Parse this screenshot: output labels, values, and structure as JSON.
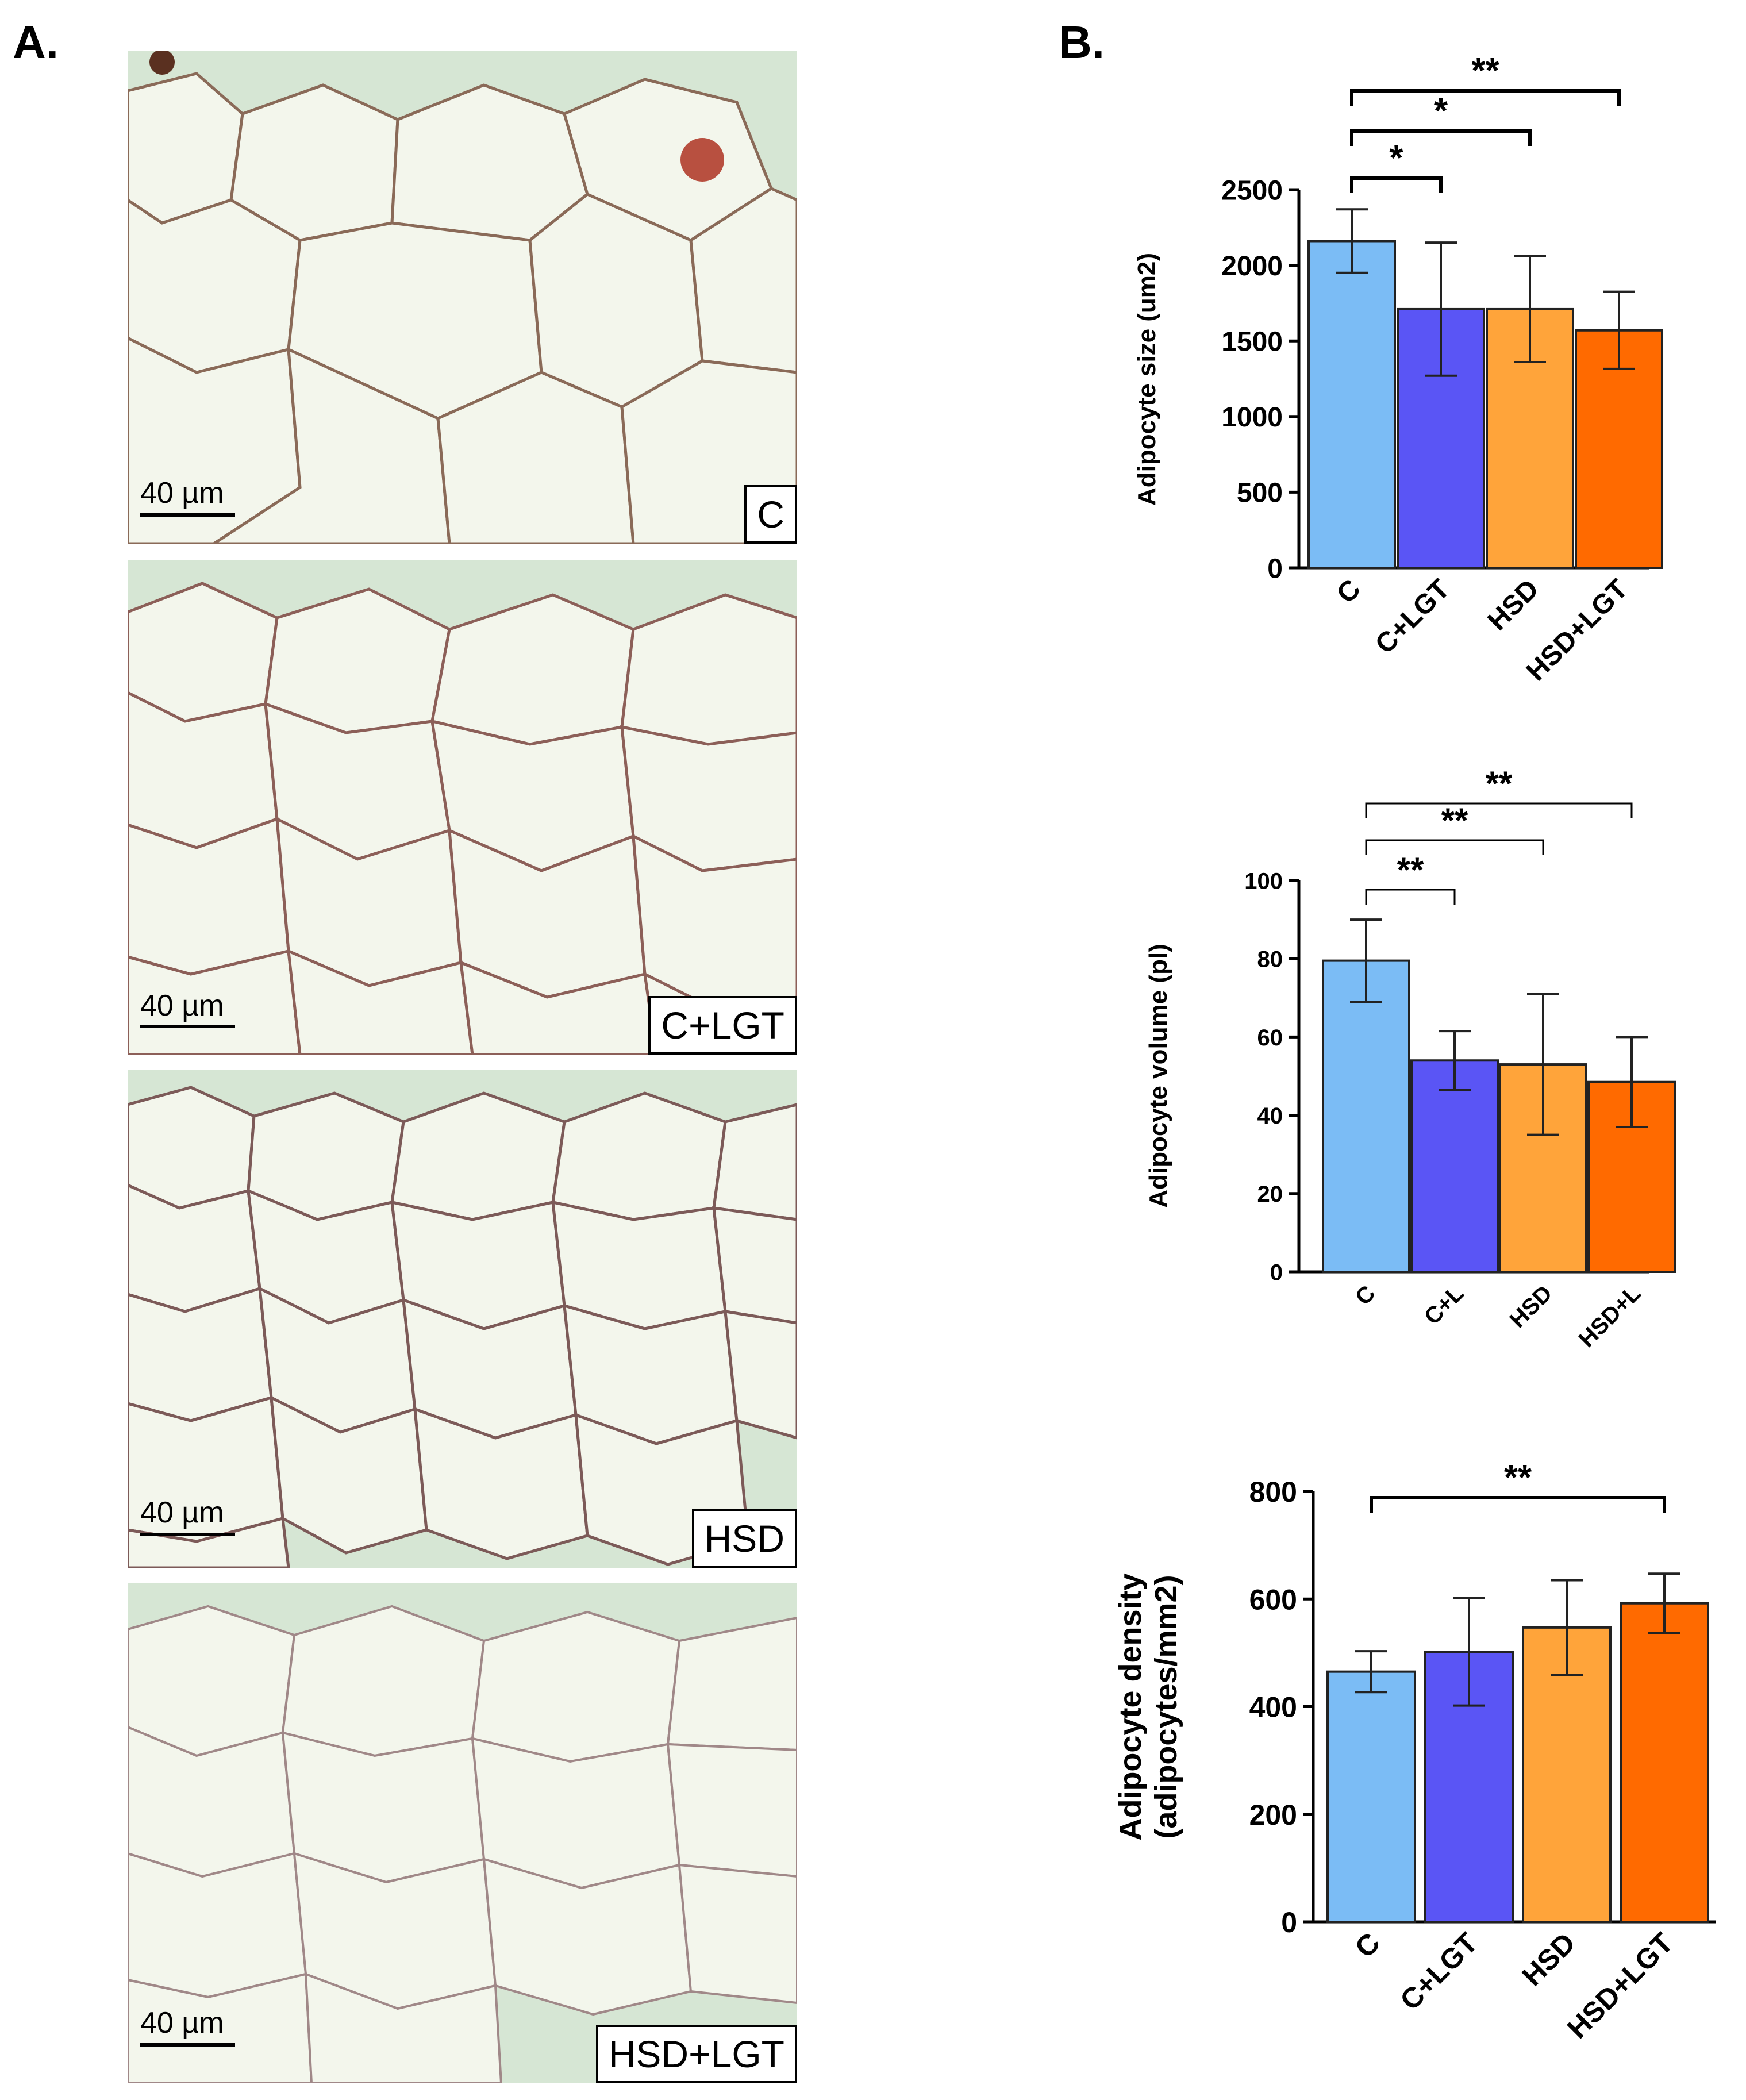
{
  "panel_a": {
    "letter": "A.",
    "images": [
      {
        "label": "C",
        "scale": "40 µm"
      },
      {
        "label": "C+LGT",
        "scale": "40 µm"
      },
      {
        "label": "HSD",
        "scale": "40 µm"
      },
      {
        "label": "HSD+LGT",
        "scale": "40 µm"
      }
    ]
  },
  "panel_b": {
    "letter": "B."
  },
  "chart_data": [
    {
      "type": "bar",
      "categories": [
        "C",
        "C+LGT",
        "HSD",
        "HSD+LGT"
      ],
      "values": [
        2160,
        1710,
        1710,
        1570
      ],
      "errors": [
        210,
        440,
        350,
        255
      ],
      "ylabel": "Adipocyte size (um2)",
      "ylim": [
        0,
        2500
      ],
      "yticks": [
        "0",
        "500",
        "1000",
        "1500",
        "2000",
        "2500"
      ],
      "significance": [
        {
          "from": "C",
          "to": "C+LGT",
          "label": "*"
        },
        {
          "from": "C",
          "to": "HSD",
          "label": "*"
        },
        {
          "from": "C",
          "to": "HSD+LGT",
          "label": "**"
        }
      ],
      "colors": [
        "#7bbcf5",
        "#5a55f5",
        "#ffa43a",
        "#ff6a00"
      ],
      "grid": false
    },
    {
      "type": "bar",
      "categories": [
        "C",
        "C+L",
        "HSD",
        "HSD+L"
      ],
      "values": [
        79.5,
        54,
        53,
        48.5
      ],
      "errors": [
        10.5,
        7.5,
        18,
        11.5
      ],
      "ylabel": "Adipocyte volume (pl)",
      "ylim": [
        0,
        100
      ],
      "yticks": [
        "0",
        "20",
        "40",
        "60",
        "80",
        "100"
      ],
      "significance": [
        {
          "from": "C",
          "to": "C+L",
          "label": "**"
        },
        {
          "from": "C",
          "to": "HSD",
          "label": "**"
        },
        {
          "from": "C",
          "to": "HSD+L",
          "label": "**"
        }
      ],
      "colors": [
        "#7bbcf5",
        "#5a55f5",
        "#ffa43a",
        "#ff6a00"
      ],
      "grid": false
    },
    {
      "type": "bar",
      "categories": [
        "C",
        "C+LGT",
        "HSD",
        "HSD+LGT"
      ],
      "values": [
        465,
        502,
        547,
        592
      ],
      "errors": [
        38,
        100,
        88,
        55
      ],
      "ylabel": "Adipocyte density",
      "ylabel2": "(adipocytes/mm2)",
      "ylim": [
        0,
        800
      ],
      "yticks": [
        "0",
        "200",
        "400",
        "600",
        "800"
      ],
      "significance": [
        {
          "from": "C",
          "to": "HSD+LGT",
          "label": "**"
        }
      ],
      "colors": [
        "#7bbcf5",
        "#5a55f5",
        "#ffa43a",
        "#ff6a00"
      ],
      "grid": false
    }
  ]
}
